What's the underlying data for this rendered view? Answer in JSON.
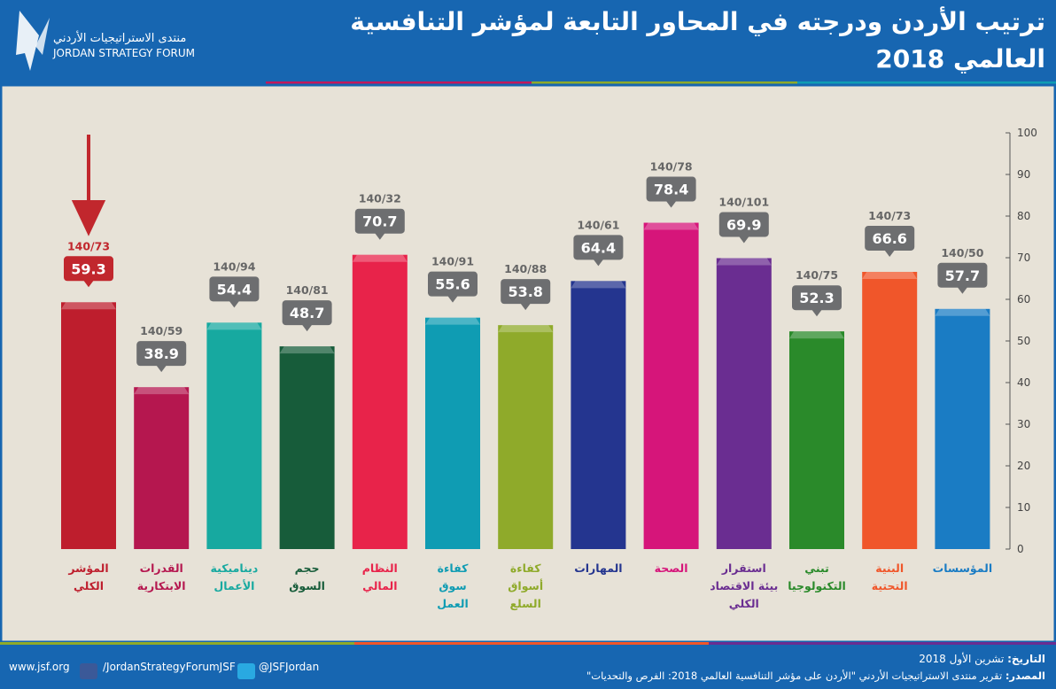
{
  "header": {
    "logo_ar": "منتدى الاستراتيجيات الأردني",
    "logo_en": "JORDAN STRATEGY FORUM"
  },
  "footer": {
    "website": "www.jsf.org",
    "facebook": "/JordanStrategyForumJSF",
    "twitter": "@JSFJordan",
    "date_label": "التاريخ:",
    "date": "تشرين الأول 2018",
    "source_label": "المصدر:",
    "source": "تقرير منتدى الاستراتيجيات الأردني \"الأردن على مؤشر التنافسية العالمي 2018: الفرص والتحديات\""
  },
  "chart_data": {
    "type": "bar",
    "title": "ترتيب الأردن ودرجته في المحاور التابعة لمؤشر التنافسية العالمي 2018",
    "categories": [
      "المؤشر\nالكلي",
      "القدرات\nالابتكارية",
      "ديناميكية\nالأعمال",
      "حجم\nالسوق",
      "النظام\nالمالي",
      "كفاءة\nسوق\nالعمل",
      "كفاءة\nأسواق\nالسلع",
      "المهارات",
      "الصحة",
      "استقرار\nبيئة الاقتصاد\nالكلي",
      "تبني\nالتكنولوجيا",
      "البنية\nالتحتية",
      "المؤسسات"
    ],
    "values": [
      59.3,
      38.9,
      54.4,
      48.7,
      70.7,
      55.6,
      53.8,
      64.4,
      78.4,
      69.9,
      52.3,
      66.6,
      57.7
    ],
    "ranks": [
      "140/73",
      "140/59",
      "140/94",
      "140/81",
      "140/32",
      "140/91",
      "140/88",
      "140/61",
      "140/78",
      "140/101",
      "140/75",
      "140/73",
      "140/50"
    ],
    "colors": [
      "#be1e2d",
      "#b5174f",
      "#17a9a0",
      "#175c3a",
      "#e8234a",
      "#0f9cb3",
      "#8faa2a",
      "#24358f",
      "#d6157a",
      "#6a2d91",
      "#2a8a2a",
      "#f0562a",
      "#1a7cc4"
    ],
    "ylim": [
      0,
      100
    ],
    "yticks": [
      0,
      10,
      20,
      30,
      40,
      50,
      60,
      70,
      80,
      90,
      100
    ]
  }
}
